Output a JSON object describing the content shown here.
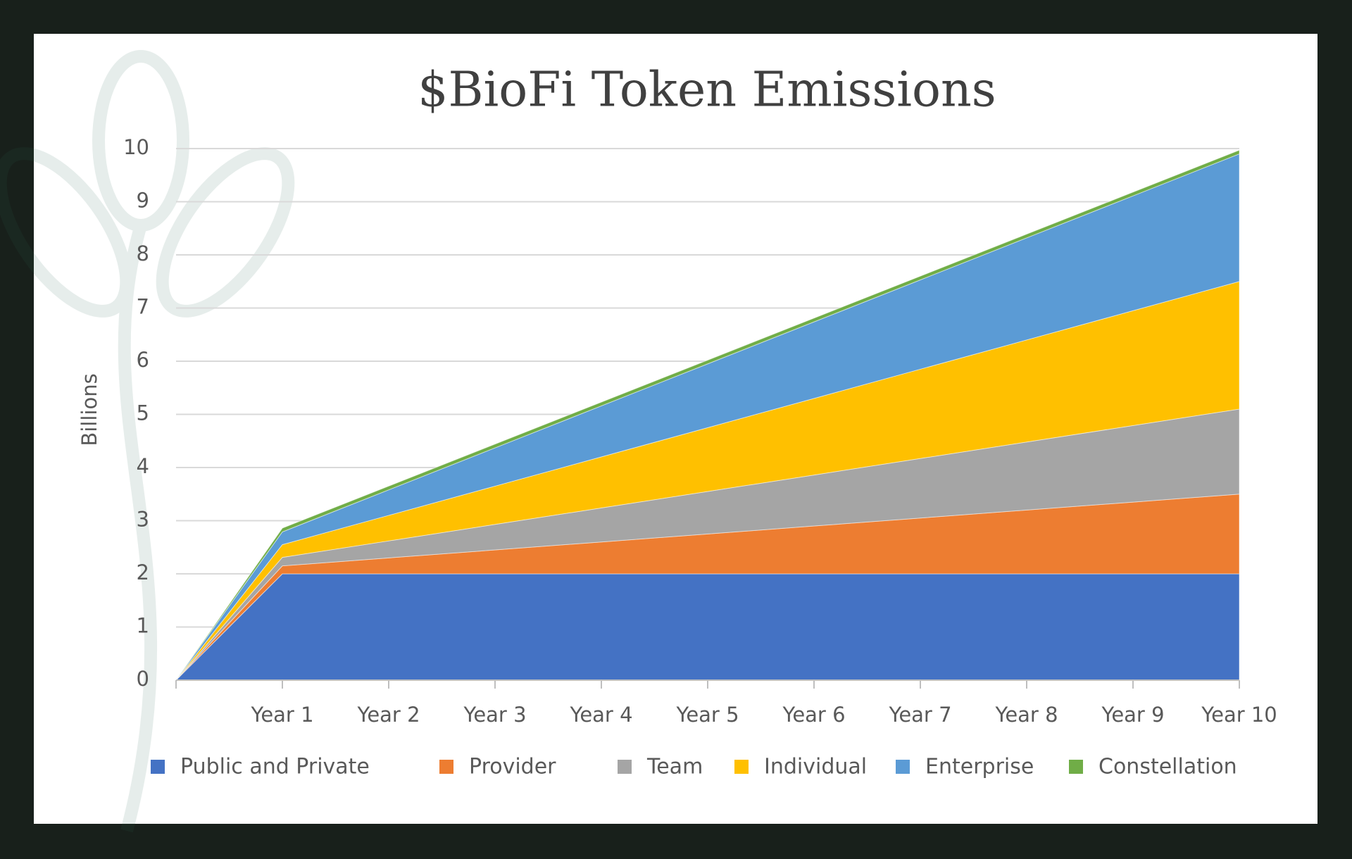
{
  "chart_data": {
    "type": "stacked_area",
    "title": "$BioFi Token Emissions",
    "y_label": "Billions",
    "categories": [
      null,
      "Year 1",
      "Year 2",
      "Year 3",
      "Year 4",
      "Year 5",
      "Year 6",
      "Year 7",
      "Year 8",
      "Year 9",
      "Year 10"
    ],
    "series": [
      {
        "name": "Public and Private",
        "color": "#4472c4",
        "values": [
          0,
          2,
          2,
          2,
          2,
          2,
          2,
          2,
          2,
          2,
          2
        ]
      },
      {
        "name": "Provider",
        "color": "#ed7d31",
        "values": [
          0,
          0.15,
          0.3,
          0.45,
          0.6,
          0.75,
          0.9,
          1.05,
          1.2,
          1.35,
          1.5
        ]
      },
      {
        "name": "Team",
        "color": "#a5a5a5",
        "values": [
          0,
          0.16,
          0.32,
          0.48,
          0.64,
          0.8,
          0.96,
          1.12,
          1.28,
          1.44,
          1.6
        ]
      },
      {
        "name": "Individual",
        "color": "#ffc000",
        "values": [
          0,
          0.24,
          0.48,
          0.72,
          0.96,
          1.2,
          1.44,
          1.68,
          1.92,
          2.16,
          2.4
        ]
      },
      {
        "name": "Enterprise",
        "color": "#5b9bd5",
        "values": [
          0,
          0.24,
          0.48,
          0.72,
          0.96,
          1.2,
          1.44,
          1.68,
          1.92,
          2.16,
          2.4
        ]
      },
      {
        "name": "Constellation",
        "color": "#70ad47",
        "values": [
          0,
          0.07,
          0.07,
          0.07,
          0.07,
          0.07,
          0.07,
          0.07,
          0.07,
          0.07,
          0.07
        ]
      }
    ],
    "ylim": [
      0,
      10
    ],
    "yticks": [
      0,
      1,
      2,
      3,
      4,
      5,
      6,
      7,
      8,
      9,
      10
    ],
    "grid": true,
    "legend": "bottom"
  }
}
